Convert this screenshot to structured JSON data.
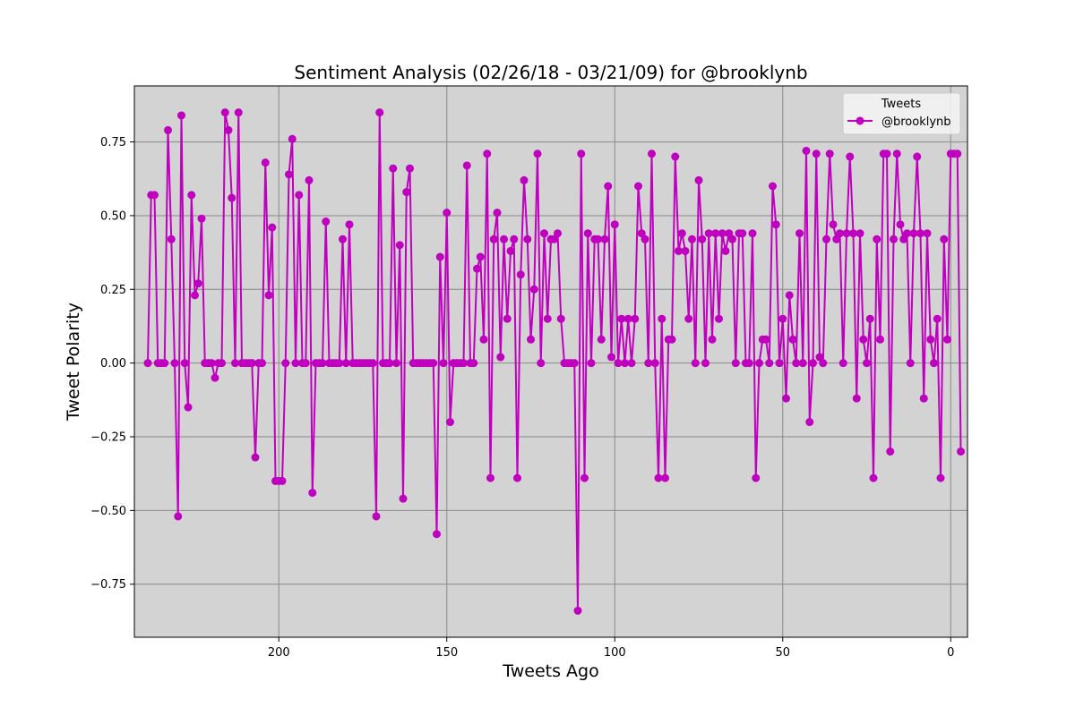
{
  "chart_data": {
    "type": "line",
    "title": "Sentiment Analysis (02/26/18 - 03/21/09) for @brooklynb",
    "xlabel": "Tweets Ago",
    "ylabel": "Tweet Polarity",
    "x_inverted": true,
    "xlim": [
      -5,
      243
    ],
    "ylim": [
      -0.93,
      0.94
    ],
    "xticks": [
      200,
      150,
      100,
      50,
      0
    ],
    "yticks": [
      -0.75,
      -0.5,
      -0.25,
      0.0,
      0.25,
      0.5,
      0.75
    ],
    "ytick_labels": [
      "−0.75",
      "−0.50",
      "−0.25",
      "0.00",
      "0.25",
      "0.50",
      "0.75"
    ],
    "grid": true,
    "legend": {
      "title": "Tweets",
      "placement": "top-right"
    },
    "series": [
      {
        "name": "@brooklynb",
        "color": "#bf00bf",
        "marker": "circle",
        "x_start": 239,
        "x_step": -1,
        "values": [
          0,
          0.57,
          0.57,
          0,
          0,
          0,
          0.79,
          0.42,
          0,
          -0.52,
          0.84,
          0,
          -0.15,
          0.57,
          0.23,
          0.27,
          0.49,
          0,
          0,
          0,
          -0.05,
          0,
          0,
          0.85,
          0.79,
          0.56,
          0,
          0.85,
          0,
          0,
          0,
          0,
          -0.32,
          0,
          0,
          0.68,
          0.23,
          0.46,
          -0.4,
          -0.4,
          -0.4,
          0,
          0.64,
          0.76,
          0,
          0.57,
          0,
          0,
          0.62,
          -0.44,
          0,
          0,
          0,
          0.48,
          0,
          0,
          0,
          0,
          0.42,
          0,
          0.47,
          0,
          0,
          0,
          0,
          0,
          0,
          0,
          -0.52,
          0.85,
          0,
          0,
          0,
          0.66,
          0,
          0.4,
          -0.46,
          0.58,
          0.66,
          0,
          0,
          0,
          0,
          0,
          0,
          0,
          -0.58,
          0.36,
          0,
          0.51,
          -0.2,
          0,
          0,
          0,
          0,
          0.67,
          0,
          0,
          0.32,
          0.36,
          0.08,
          0.71,
          -0.39,
          0.42,
          0.51,
          0.02,
          0.42,
          0.15,
          0.38,
          0.42,
          -0.39,
          0.3,
          0.62,
          0.42,
          0.08,
          0.25,
          0.71,
          0,
          0.44,
          0.15,
          0.42,
          0.42,
          0.44,
          0.15,
          0,
          0,
          0,
          0,
          -0.84,
          0.71,
          -0.39,
          0.44,
          0,
          0.42,
          0.42,
          0.08,
          0.42,
          0.6,
          0.02,
          0.47,
          0,
          0.15,
          0,
          0.15,
          0,
          0.15,
          0.6,
          0.44,
          0.42,
          0,
          0.71,
          0,
          -0.39,
          0.15,
          -0.39,
          0.08,
          0.08,
          0.7,
          0.38,
          0.44,
          0.38,
          0.15,
          0.42,
          0,
          0.62,
          0.42,
          0,
          0.44,
          0.08,
          0.44,
          0.15,
          0.44,
          0.38,
          0.44,
          0.42,
          0,
          0.44,
          0.44,
          0,
          0,
          0.44,
          -0.39,
          0,
          0.08,
          0.08,
          0,
          0.6,
          0.47,
          0,
          0.15,
          -0.12,
          0.23,
          0.08,
          0,
          0.44,
          0,
          0.72,
          -0.2,
          0,
          0.71,
          0.02,
          0,
          0.42,
          0.71,
          0.47,
          0.42,
          0.44,
          0,
          0.44,
          0.7,
          0.44,
          -0.12,
          0.44,
          0.08,
          0,
          0.15,
          -0.39,
          0.42,
          0.08,
          0.71,
          0.71,
          -0.3,
          0.42,
          0.71,
          0.47,
          0.42,
          0.44,
          0,
          0.44,
          0.7,
          0.44,
          -0.12,
          0.44,
          0.08,
          0,
          0.15,
          -0.39,
          0.42,
          0.08,
          0.71,
          0.71,
          0.71,
          -0.3
        ]
      }
    ]
  }
}
